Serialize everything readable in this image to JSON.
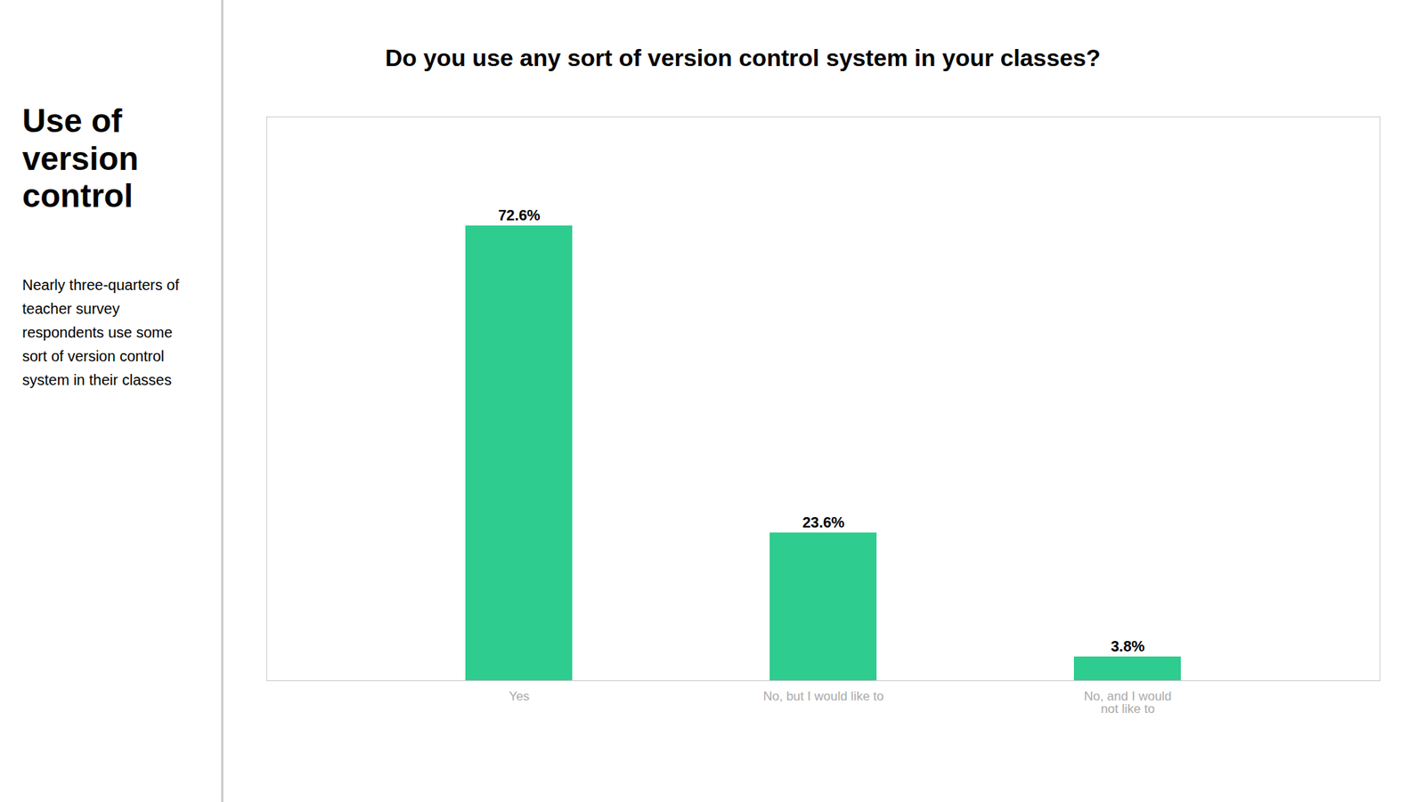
{
  "chart_data": {
    "type": "bar",
    "title": "Do you use any sort of version control system in your classes?",
    "annotations": [
      "Use of version\ncontrol",
      "Nearly three-quarters of\nteacher survey\nrespondents use some\nsort of version control\nsystem in their classes"
    ],
    "categories": [
      "Yes",
      "No, but I would like to",
      "No, and I would\nnot like to"
    ],
    "values": [
      72.6,
      23.6,
      3.8
    ],
    "value_labels": [
      "72.6%",
      "23.6%",
      "3.8%"
    ],
    "color": "#2ecc8e",
    "ylim": [
      0,
      90
    ],
    "data_labels": true,
    "tick_labels": "x",
    "grid": false
  }
}
